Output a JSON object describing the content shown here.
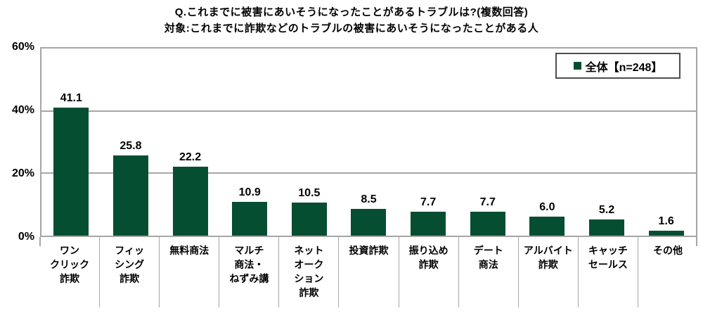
{
  "title": {
    "line1": "Q.これまでに被害にあいそうになったことがあるトラブルは?(複数回答)",
    "line2": "対象:これまでに詐欺などのトラブルの被害にあいそうになったことがある人"
  },
  "legend": {
    "label": "全体【n=248】",
    "marker_color": "#064e32"
  },
  "y_axis": {
    "ticks": [
      "60%",
      "40%",
      "20%",
      "0%"
    ],
    "tick_values": [
      60,
      40,
      20,
      0
    ]
  },
  "chart_data": {
    "type": "bar",
    "title": "Q.これまでに被害にあいそうになったことがあるトラブルは?(複数回答)",
    "subtitle": "対象:これまでに詐欺などのトラブルの被害にあいそうになったことがある人",
    "categories": [
      "ワンクリック詐欺",
      "フィッシング詐欺",
      "無料商法",
      "マルチ商法・ねずみ講",
      "ネットオークション詐欺",
      "投資詐欺",
      "振り込め詐欺",
      "デート商法",
      "アルバイト詐欺",
      "キャッチセールス",
      "その他"
    ],
    "category_display": [
      [
        "ワン",
        "クリック",
        "詐欺"
      ],
      [
        "フィッ",
        "シング",
        "詐欺"
      ],
      [
        "無料商法"
      ],
      [
        "マルチ",
        "商法・",
        "ねずみ講"
      ],
      [
        "ネット",
        "オーク",
        "ション",
        "詐欺"
      ],
      [
        "投資詐欺"
      ],
      [
        "振り込め",
        "詐欺"
      ],
      [
        "デート",
        "商法"
      ],
      [
        "アルバイト",
        "詐欺"
      ],
      [
        "キャッチ",
        "セールス"
      ],
      [
        "その他"
      ]
    ],
    "series": [
      {
        "name": "全体【n=248】",
        "values": [
          41.1,
          25.8,
          22.2,
          10.9,
          10.5,
          8.5,
          7.7,
          7.7,
          6.0,
          5.2,
          1.6
        ]
      }
    ],
    "values": [
      41.1,
      25.8,
      22.2,
      10.9,
      10.5,
      8.5,
      7.7,
      7.7,
      6.0,
      5.2,
      1.6
    ],
    "xlabel": "",
    "ylabel": "",
    "ylim": [
      0,
      60
    ],
    "grid": "horizontal",
    "legend_position": "top-right",
    "bar_color": "#064e32"
  }
}
